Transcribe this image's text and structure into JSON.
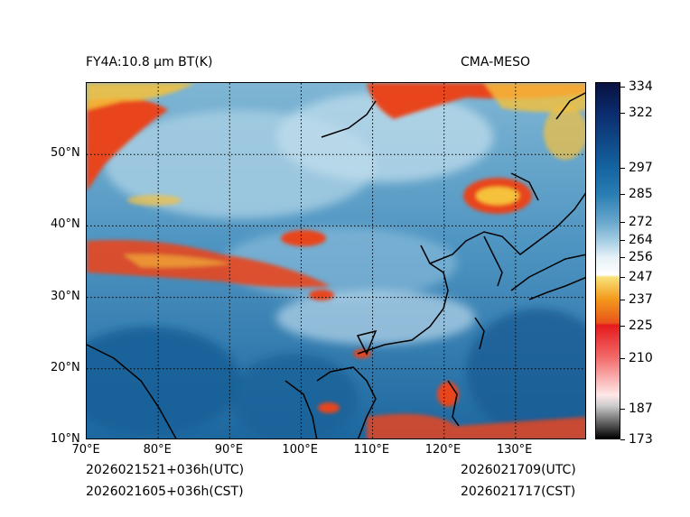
{
  "title_left": "FY4A:10.8 µm BT(K)",
  "title_right": "CMA-MESO",
  "footer": {
    "left_line1": "2026021521+036h(UTC)",
    "left_line2": "2026021605+036h(CST)",
    "right_line1": "2026021709(UTC)",
    "right_line2": "2026021717(CST)"
  },
  "map": {
    "lon_range": [
      70,
      140
    ],
    "lat_range": [
      10,
      60
    ],
    "lon_ticks": [
      "70°E",
      "80°E",
      "90°E",
      "100°E",
      "110°E",
      "120°E",
      "130°E"
    ],
    "lat_ticks": [
      "10°N",
      "20°N",
      "30°N",
      "40°N",
      "50°N"
    ],
    "lon_values": [
      70,
      80,
      90,
      100,
      110,
      120,
      130
    ],
    "lat_values": [
      10,
      20,
      30,
      40,
      50
    ]
  },
  "colorbar": {
    "labels": [
      "334",
      "322",
      "297",
      "285",
      "272",
      "264",
      "256",
      "247",
      "237",
      "225",
      "210",
      "187",
      "173"
    ],
    "values": [
      334,
      322,
      297,
      285,
      272,
      264,
      256,
      247,
      237,
      225,
      210,
      187,
      173
    ],
    "range": [
      173,
      336
    ]
  },
  "colors": {
    "sea_blue": "#1f6ea5",
    "land_blue": "#5b9ec6",
    "cloud_red": "#e8451e",
    "cloud_yellow": "#f6c13a"
  }
}
